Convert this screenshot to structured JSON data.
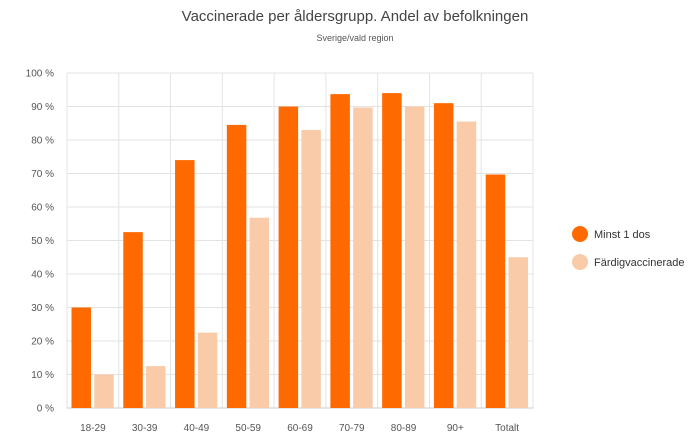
{
  "chart_data": {
    "type": "bar",
    "title": "Vaccinerade per åldersgrupp. Andel av befolkningen",
    "subtitle": "Sverige/vald region",
    "categories": [
      "18-29",
      "30-39",
      "40-49",
      "50-59",
      "60-69",
      "70-79",
      "80-89",
      "90+",
      "Totalt"
    ],
    "series": [
      {
        "name": "Minst 1 dos",
        "color": "#ff6a00",
        "values": [
          30,
          52.5,
          74,
          84.5,
          90,
          93.7,
          94,
          91,
          69.7
        ]
      },
      {
        "name": "Färdigvaccinerade",
        "color": "#f9cba8",
        "values": [
          10,
          12.5,
          22.5,
          56.8,
          83,
          89.7,
          90,
          85.5,
          45
        ]
      }
    ],
    "y_ticks": [
      "0 %",
      "10 %",
      "20 %",
      "30 %",
      "40 %",
      "50 %",
      "60 %",
      "70 %",
      "80 %",
      "90 %",
      "100 %"
    ],
    "ylim": [
      0,
      100
    ],
    "grid": true,
    "legend_position": "right"
  }
}
